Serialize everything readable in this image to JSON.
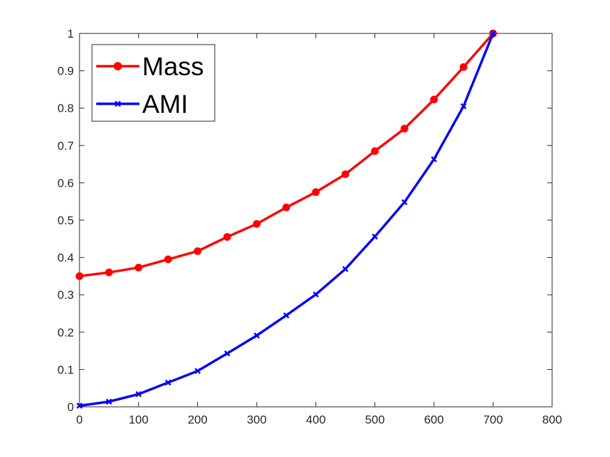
{
  "chart_data": {
    "type": "line",
    "title": "",
    "xlabel": "",
    "ylabel": "",
    "xlim": [
      0,
      800
    ],
    "ylim": [
      0,
      1
    ],
    "xticks": [
      0,
      100,
      200,
      300,
      400,
      500,
      600,
      700,
      800
    ],
    "yticks": [
      0,
      0.1,
      0.2,
      0.3,
      0.4,
      0.5,
      0.6,
      0.7,
      0.8,
      0.9,
      1
    ],
    "xtick_labels": [
      "0",
      "100",
      "200",
      "300",
      "400",
      "500",
      "600",
      "700",
      "800"
    ],
    "ytick_labels": [
      "0",
      "0.1",
      "0.2",
      "0.3",
      "0.4",
      "0.5",
      "0.6",
      "0.7",
      "0.8",
      "0.9",
      "1"
    ],
    "grid": false,
    "legend_position": "top-left",
    "x": [
      0,
      50,
      100,
      150,
      200,
      250,
      300,
      350,
      400,
      450,
      500,
      550,
      600,
      650,
      700
    ],
    "series": [
      {
        "name": "Mass",
        "color": "#ff0000",
        "marker": "circle",
        "values": [
          0.35,
          0.36,
          0.373,
          0.395,
          0.417,
          0.455,
          0.49,
          0.534,
          0.575,
          0.623,
          0.685,
          0.745,
          0.823,
          0.91,
          1.0
        ]
      },
      {
        "name": "AMI",
        "color": "#0000ff",
        "marker": "x",
        "values": [
          0.003,
          0.014,
          0.034,
          0.065,
          0.096,
          0.143,
          0.191,
          0.245,
          0.301,
          0.369,
          0.456,
          0.548,
          0.663,
          0.805,
          1.0
        ]
      }
    ]
  }
}
